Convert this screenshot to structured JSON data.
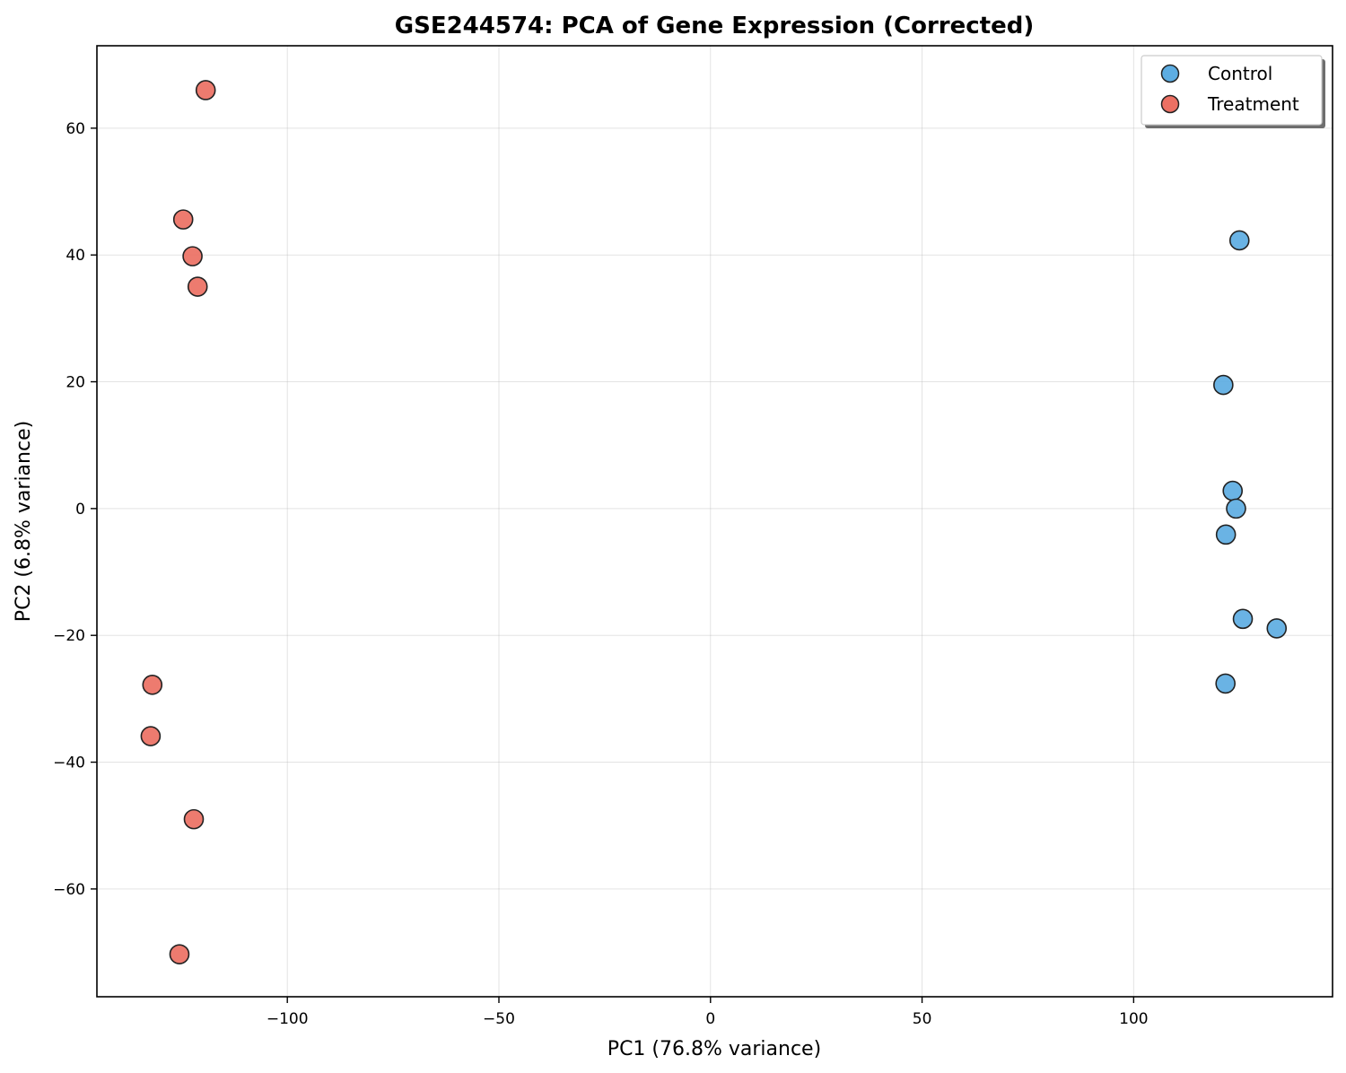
{
  "chart_data": {
    "type": "scatter",
    "title": "GSE244574: PCA of Gene Expression (Corrected)",
    "xlabel": "PC1 (76.8% variance)",
    "ylabel": "PC2 (6.8% variance)",
    "xlim": [
      -145,
      147
    ],
    "ylim": [
      -77,
      73
    ],
    "xticks": [
      -100,
      -50,
      0,
      50,
      100
    ],
    "yticks": [
      -60,
      -40,
      -20,
      0,
      20,
      40,
      60
    ],
    "xtick_labels": [
      "−100",
      "−50",
      "0",
      "50",
      "100"
    ],
    "ytick_labels": [
      "−60",
      "−40",
      "−20",
      "0",
      "20",
      "40",
      "60"
    ],
    "grid": true,
    "legend_position": "top-right",
    "series": [
      {
        "name": "Control",
        "color": "#5DADE2",
        "points": [
          {
            "x": 125.0,
            "y": 42.3
          },
          {
            "x": 121.2,
            "y": 19.5
          },
          {
            "x": 123.4,
            "y": 2.8
          },
          {
            "x": 124.2,
            "y": 0.0
          },
          {
            "x": 121.8,
            "y": -4.1
          },
          {
            "x": 125.8,
            "y": -17.4
          },
          {
            "x": 133.8,
            "y": -18.9
          },
          {
            "x": 121.7,
            "y": -27.6
          }
        ]
      },
      {
        "name": "Treatment",
        "color": "#EC7063",
        "points": [
          {
            "x": -119.3,
            "y": 66.0
          },
          {
            "x": -124.6,
            "y": 45.6
          },
          {
            "x": -122.4,
            "y": 39.8
          },
          {
            "x": -121.2,
            "y": 35.0
          },
          {
            "x": -131.9,
            "y": -27.8
          },
          {
            "x": -132.3,
            "y": -35.9
          },
          {
            "x": -122.1,
            "y": -49.0
          },
          {
            "x": -125.5,
            "y": -70.3
          }
        ]
      }
    ]
  }
}
